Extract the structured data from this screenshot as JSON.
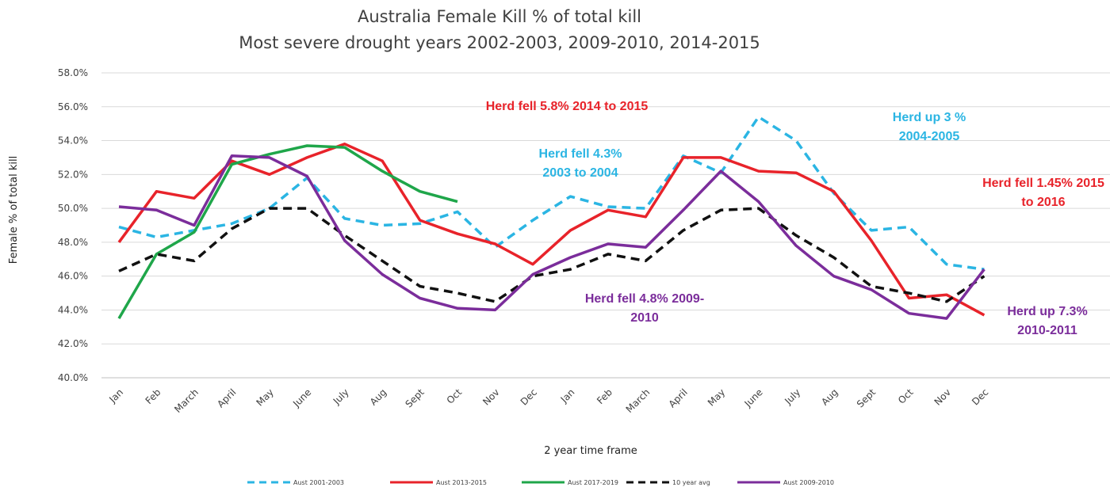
{
  "chart_data": {
    "type": "line",
    "title": [
      "Australia Female Kill % of total kill",
      "Most severe drought years 2002-2003, 2009-2010, 2014-2015"
    ],
    "xlabel": "2 year time frame",
    "ylabel": "Female % of total kill",
    "ylim": [
      40,
      58
    ],
    "y_ticks": [
      "40.0%",
      "42.0%",
      "44.0%",
      "46.0%",
      "48.0%",
      "50.0%",
      "52.0%",
      "54.0%",
      "56.0%",
      "58.0%"
    ],
    "grid": true,
    "legend_position": "bottom",
    "categories": [
      "Jan",
      "Feb",
      "March",
      "April",
      "May",
      "June",
      "July",
      "Aug",
      "Sept",
      "Oct",
      "Nov",
      "Dec",
      "Jan",
      "Feb",
      "March",
      "April",
      "May",
      "June",
      "July",
      "Aug",
      "Sept",
      "Oct",
      "Nov",
      "Dec"
    ],
    "series": [
      {
        "name": "Aust 2001-2003",
        "color": "#2bb5e3",
        "dash": "dashed",
        "values": [
          48.9,
          48.3,
          48.7,
          49.1,
          50.0,
          51.8,
          49.4,
          49.0,
          49.1,
          49.8,
          47.7,
          49.3,
          50.7,
          50.1,
          50.0,
          53.1,
          52.1,
          55.4,
          54.0,
          50.9,
          48.7,
          48.9,
          46.7,
          46.4
        ]
      },
      {
        "name": "Aust 2013-2015",
        "color": "#e8232a",
        "dash": "solid",
        "values": [
          48.0,
          51.0,
          50.6,
          52.8,
          52.0,
          53.0,
          53.8,
          52.8,
          49.3,
          48.5,
          47.9,
          46.7,
          48.7,
          49.9,
          49.5,
          53.0,
          53.0,
          52.2,
          52.1,
          51.0,
          48.1,
          44.7,
          44.9,
          43.7
        ]
      },
      {
        "name": "Aust 2017-2019",
        "color": "#1fa64a",
        "dash": "solid",
        "values": [
          43.5,
          47.3,
          48.6,
          52.6,
          53.2,
          53.7,
          53.6,
          52.2,
          51.0,
          50.4,
          null,
          null,
          null,
          null,
          null,
          null,
          null,
          null,
          null,
          null,
          null,
          null,
          null,
          null
        ]
      },
      {
        "name": "10 year avg",
        "color": "#111111",
        "dash": "dashed",
        "values": [
          46.3,
          47.3,
          46.9,
          48.8,
          50.0,
          50.0,
          48.4,
          46.9,
          45.4,
          45.0,
          44.5,
          46.0,
          46.4,
          47.3,
          46.9,
          48.7,
          49.9,
          50.0,
          48.4,
          47.1,
          45.4,
          45.0,
          44.5,
          46.0
        ]
      },
      {
        "name": "Aust 2009-2010",
        "color": "#7b2d9b",
        "dash": "solid",
        "values": [
          50.1,
          49.9,
          49.0,
          53.1,
          53.0,
          51.9,
          48.1,
          46.1,
          44.7,
          44.1,
          44.0,
          46.1,
          47.1,
          47.9,
          47.7,
          49.9,
          52.2,
          50.4,
          47.8,
          46.0,
          45.2,
          43.8,
          43.5,
          46.4
        ]
      }
    ],
    "annotations": [
      {
        "lines": [
          "Herd fell 5.8% 2014 to 2015"
        ],
        "color": "#e8232a"
      },
      {
        "lines": [
          "Herd fell 4.3%",
          "2003 to 2004"
        ],
        "color": "#2bb5e3"
      },
      {
        "lines": [
          "Herd up 3 %",
          "2004-2005"
        ],
        "color": "#2bb5e3"
      },
      {
        "lines": [
          "Herd fell 1.45% 2015",
          "to 2016"
        ],
        "color": "#e8232a"
      },
      {
        "lines": [
          "Herd fell 4.8% 2009-",
          "2010"
        ],
        "color": "#7b2d9b"
      },
      {
        "lines": [
          "Herd up 7.3%",
          "2010-2011"
        ],
        "color": "#7b2d9b"
      }
    ]
  }
}
